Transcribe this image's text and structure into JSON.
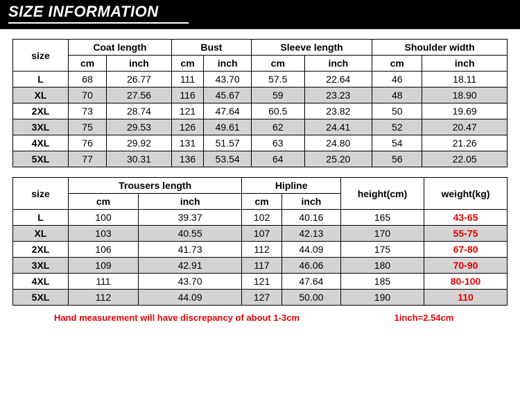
{
  "header": {
    "title": "SIZE INFORMATION"
  },
  "colors": {
    "highlight": "#e60000",
    "stripe": "#d3d3d3",
    "border": "#000000",
    "header_bg": "#000000"
  },
  "table1": {
    "size_label": "size",
    "groups": [
      "Coat length",
      "Bust",
      "Sleeve length",
      "Shoulder width"
    ],
    "units": [
      "cm",
      "inch"
    ],
    "rows": [
      {
        "size": "L",
        "vals": [
          "68",
          "26.77",
          "111",
          "43.70",
          "57.5",
          "22.64",
          "46",
          "18.11"
        ]
      },
      {
        "size": "XL",
        "vals": [
          "70",
          "27.56",
          "116",
          "45.67",
          "59",
          "23.23",
          "48",
          "18.90"
        ]
      },
      {
        "size": "2XL",
        "vals": [
          "73",
          "28.74",
          "121",
          "47.64",
          "60.5",
          "23.82",
          "50",
          "19.69"
        ]
      },
      {
        "size": "3XL",
        "vals": [
          "75",
          "29.53",
          "126",
          "49.61",
          "62",
          "24.41",
          "52",
          "20.47"
        ]
      },
      {
        "size": "4XL",
        "vals": [
          "76",
          "29.92",
          "131",
          "51.57",
          "63",
          "24.80",
          "54",
          "21.26"
        ]
      },
      {
        "size": "5XL",
        "vals": [
          "77",
          "30.31",
          "136",
          "53.54",
          "64",
          "25.20",
          "56",
          "22.05"
        ]
      }
    ]
  },
  "table2": {
    "size_label": "size",
    "groups": [
      "Trousers length",
      "Hipline"
    ],
    "extra_headers": [
      "height(cm)",
      "weight(kg)"
    ],
    "units": [
      "cm",
      "inch"
    ],
    "rows": [
      {
        "size": "L",
        "vals": [
          "100",
          "39.37",
          "102",
          "40.16"
        ],
        "height": "165",
        "weight": "43-65"
      },
      {
        "size": "XL",
        "vals": [
          "103",
          "40.55",
          "107",
          "42.13"
        ],
        "height": "170",
        "weight": "55-75"
      },
      {
        "size": "2XL",
        "vals": [
          "106",
          "41.73",
          "112",
          "44.09"
        ],
        "height": "175",
        "weight": "67-80"
      },
      {
        "size": "3XL",
        "vals": [
          "109",
          "42.91",
          "117",
          "46.06"
        ],
        "height": "180",
        "weight": "70-90"
      },
      {
        "size": "4XL",
        "vals": [
          "111",
          "43.70",
          "121",
          "47.64"
        ],
        "height": "185",
        "weight": "80-100"
      },
      {
        "size": "5XL",
        "vals": [
          "112",
          "44.09",
          "127",
          "50.00"
        ],
        "height": "190",
        "weight": "110"
      }
    ]
  },
  "footer": {
    "note": "Hand measurement will have discrepancy of about 1-3cm",
    "conversion": "1inch=2.54cm"
  }
}
